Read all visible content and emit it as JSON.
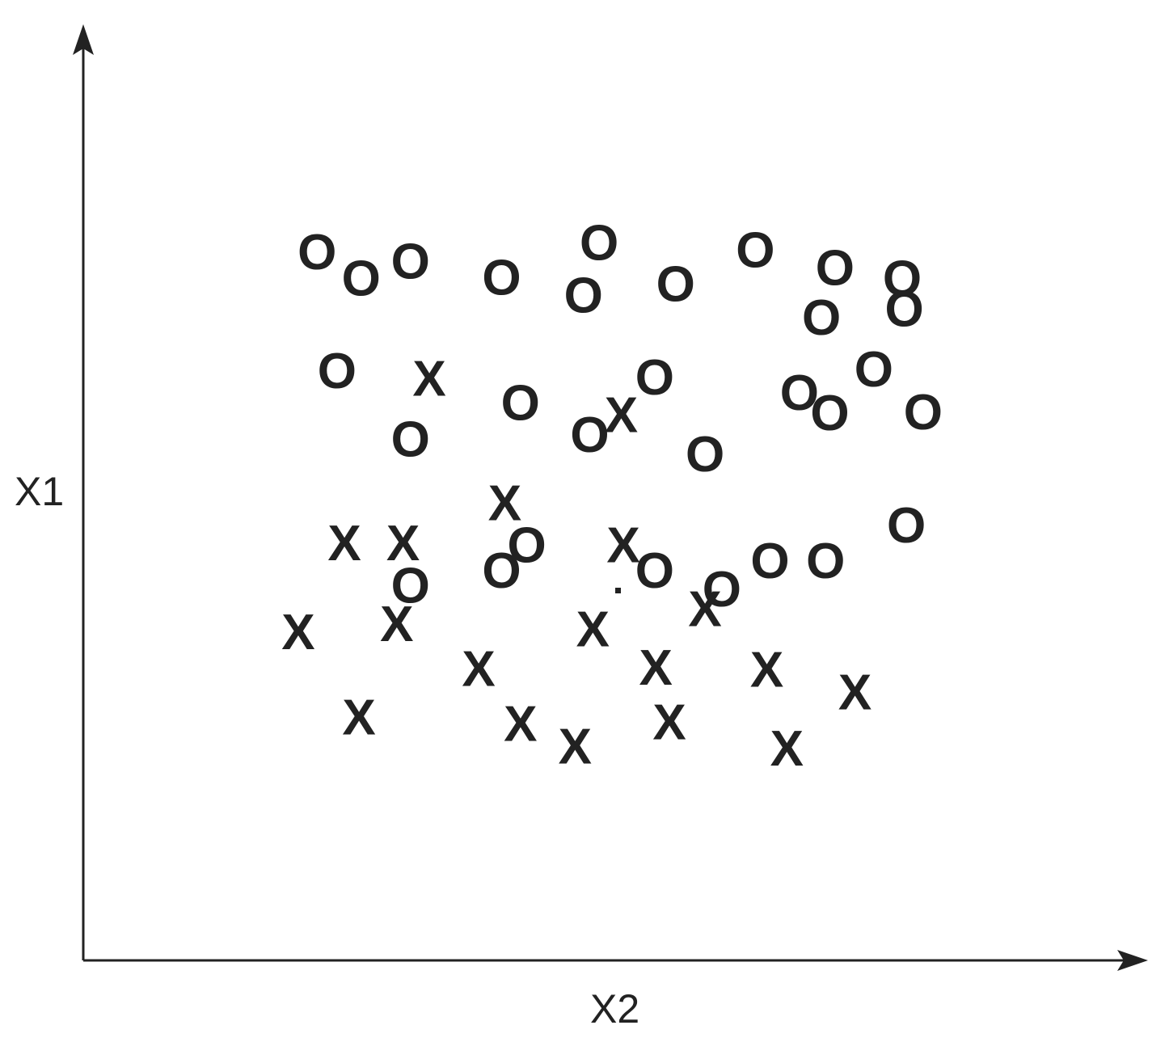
{
  "chart_data": {
    "type": "scatter",
    "xlabel": "X2",
    "ylabel": "X1",
    "xlim": [
      0,
      100
    ],
    "ylim": [
      0,
      100
    ],
    "grid": false,
    "legend": "none",
    "colors": {
      "ink": "#222222",
      "background": "#ffffff"
    },
    "series": [
      {
        "marker": "O",
        "points": [
          [
            22.3,
            75.6
          ],
          [
            26.5,
            72.8
          ],
          [
            31.2,
            74.6
          ],
          [
            39.9,
            72.9
          ],
          [
            49.2,
            76.6
          ],
          [
            47.7,
            71.0
          ],
          [
            56.5,
            72.2
          ],
          [
            64.1,
            75.8
          ],
          [
            71.7,
            73.9
          ],
          [
            78.1,
            72.8
          ],
          [
            70.4,
            68.6
          ],
          [
            78.3,
            69.5
          ],
          [
            75.4,
            63.1
          ],
          [
            80.1,
            58.5
          ],
          [
            54.5,
            62.2
          ],
          [
            68.3,
            60.6
          ],
          [
            71.2,
            58.4
          ],
          [
            41.7,
            59.5
          ],
          [
            24.2,
            62.9
          ],
          [
            31.2,
            55.6
          ],
          [
            48.3,
            56.1
          ],
          [
            59.3,
            54.0
          ],
          [
            78.5,
            46.4
          ],
          [
            42.3,
            44.3
          ],
          [
            65.5,
            42.6
          ],
          [
            70.8,
            42.6
          ],
          [
            60.9,
            39.6
          ],
          [
            54.5,
            41.6
          ],
          [
            39.9,
            41.6
          ],
          [
            31.2,
            40.0
          ]
        ]
      },
      {
        "marker": "X",
        "points": [
          [
            33.0,
            62.1
          ],
          [
            51.3,
            58.2
          ],
          [
            40.2,
            48.8
          ],
          [
            24.9,
            44.5
          ],
          [
            30.5,
            44.5
          ],
          [
            51.5,
            44.3
          ],
          [
            20.5,
            35.0
          ],
          [
            29.9,
            35.9
          ],
          [
            48.6,
            35.3
          ],
          [
            59.3,
            37.5
          ],
          [
            37.7,
            31.1
          ],
          [
            54.6,
            31.2
          ],
          [
            65.2,
            31.0
          ],
          [
            73.6,
            28.6
          ],
          [
            26.3,
            25.9
          ],
          [
            41.7,
            25.2
          ],
          [
            46.9,
            22.8
          ],
          [
            55.9,
            25.4
          ],
          [
            67.1,
            22.6
          ]
        ]
      }
    ]
  }
}
